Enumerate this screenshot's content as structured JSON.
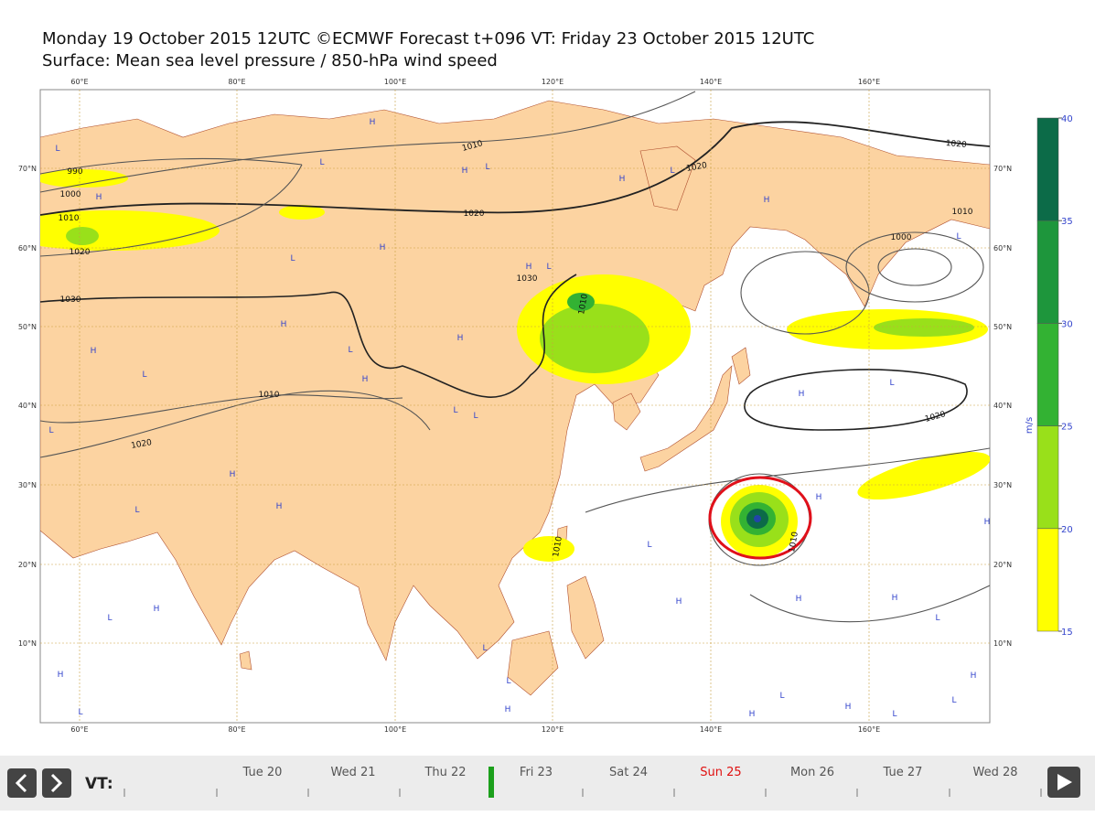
{
  "header": {
    "title": "Monday 19 October 2015 12UTC ©ECMWF Forecast t+096 VT: Friday 23 October 2015 12UTC",
    "subtitle": "Surface: Mean sea level pressure / 850-hPa wind speed"
  },
  "map": {
    "lon_labels": [
      "60°E",
      "80°E",
      "100°E",
      "120°E",
      "140°E",
      "160°E"
    ],
    "lat_labels": [
      "70°N",
      "60°N",
      "50°N",
      "40°N",
      "30°N",
      "20°N",
      "10°N"
    ],
    "isobar_labels": [
      990,
      1000,
      1010,
      1020,
      1030,
      1010,
      1020,
      1030,
      1010,
      1010,
      1020,
      1020,
      1020,
      1010,
      1000,
      1020,
      1010,
      1010
    ],
    "pressure_centers": [
      "L",
      "H",
      "L",
      "H",
      "H",
      "L",
      "H",
      "L",
      "H",
      "L",
      "L",
      "H",
      "H",
      "L",
      "H",
      "H",
      "L",
      "H",
      "H",
      "L",
      "L",
      "L",
      "L",
      "H",
      "L",
      "H",
      "L",
      "H",
      "H",
      "H",
      "L",
      "H",
      "H",
      "L",
      "H",
      "L",
      "L",
      "H",
      "H",
      "L",
      "L",
      "H",
      "H",
      "L",
      "H",
      "L",
      "H",
      "L"
    ]
  },
  "colorbar": {
    "ticks": [
      15,
      20,
      25,
      30,
      35,
      40
    ],
    "colors": [
      "#ffff00",
      "#99e01a",
      "#33b233",
      "#1e963c",
      "#0c6b48"
    ],
    "unit": "m/s"
  },
  "timeline": {
    "label": "VT:",
    "days": [
      {
        "label": "Tue 20",
        "color": "#555555"
      },
      {
        "label": "Wed 21",
        "color": "#555555"
      },
      {
        "label": "Thu 22",
        "color": "#555555"
      },
      {
        "label": "Fri 23",
        "color": "#555555"
      },
      {
        "label": "Sat 24",
        "color": "#555555"
      },
      {
        "label": "Sun 25",
        "color": "#e01010"
      },
      {
        "label": "Mon 26",
        "color": "#555555"
      },
      {
        "label": "Tue 27",
        "color": "#555555"
      },
      {
        "label": "Wed 28",
        "color": "#555555"
      }
    ]
  }
}
